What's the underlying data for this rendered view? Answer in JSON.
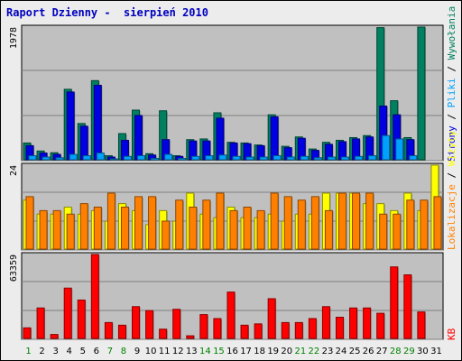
{
  "report_title": "Raport Dzienny -  sierpień 2010",
  "colors": {
    "background": "#ececec",
    "panel": "#c0c0c0",
    "title": "#0000c0",
    "visits": "#208060",
    "pages": "#0000e0",
    "files": "#00a0ff",
    "hits": "#008060",
    "sites": "#ff8000",
    "unique": "#ffff00",
    "kb": "#ff0000",
    "weekend": "#008000"
  },
  "legend_right": {
    "wywolania": "Wywołania",
    "pliki": "Pliki",
    "strony": "Strony",
    "wizyty": "Wizyty",
    "lokalizacje": "Lokalizacje",
    "kb": "KB",
    "sep": " / "
  },
  "chart_data": {
    "type": "bar",
    "categories": [
      "1",
      "2",
      "3",
      "4",
      "5",
      "6",
      "7",
      "8",
      "9",
      "10",
      "11",
      "12",
      "13",
      "14",
      "15",
      "16",
      "17",
      "18",
      "19",
      "20",
      "21",
      "22",
      "23",
      "24",
      "25",
      "26",
      "27",
      "28",
      "29",
      "30",
      "31"
    ],
    "weekend_days": [
      "1",
      "7",
      "8",
      "14",
      "15",
      "21",
      "22",
      "28",
      "29"
    ],
    "panels": [
      {
        "name": "traffic",
        "ymax_label": "1978",
        "ymax": 1978,
        "series": [
          {
            "name": "Wywołania",
            "values": [
              250,
              130,
              105,
              1050,
              540,
              1180,
              60,
              390,
              740,
              90,
              730,
              60,
              300,
              310,
              700,
              260,
              250,
              220,
              670,
              200,
              340,
              160,
              260,
              290,
              330,
              360,
              1970,
              880,
              330,
              1978,
              0
            ]
          },
          {
            "name": "Pliki",
            "values": [
              210,
              100,
              80,
              1010,
              500,
              1110,
              40,
              290,
              660,
              70,
              300,
              50,
              280,
              280,
              620,
              250,
              240,
              210,
              640,
              180,
              320,
              140,
              230,
              270,
              310,
              340,
              800,
              670,
              300,
              0,
              0
            ]
          },
          {
            "name": "Strony",
            "values": [
              60,
              40,
              30,
              80,
              60,
              100,
              10,
              50,
              60,
              20,
              80,
              20,
              50,
              60,
              70,
              50,
              40,
              40,
              60,
              40,
              50,
              30,
              40,
              40,
              50,
              60,
              360,
              310,
              60,
              0,
              0
            ]
          }
        ]
      },
      {
        "name": "visits",
        "ymax_label": "24",
        "ymax": 24,
        "series": [
          {
            "name": "Wizyty",
            "values": [
              14,
              10,
              10,
              12,
              10,
              11,
              8,
              13,
              11,
              7,
              11,
              8,
              16,
              10,
              9,
              12,
              9,
              9,
              10,
              8,
              10,
              10,
              16,
              16,
              16,
              13,
              13,
              11,
              16,
              11,
              24
            ]
          },
          {
            "name": "Lokalizacje",
            "values": [
              15,
              11,
              11,
              10,
              13,
              12,
              16,
              12,
              15,
              15,
              8,
              14,
              12,
              14,
              16,
              11,
              12,
              11,
              16,
              15,
              14,
              15,
              11,
              16,
              16,
              16,
              10,
              10,
              14,
              14,
              15
            ]
          }
        ]
      },
      {
        "name": "kb",
        "ymax_label": "63359",
        "ymax": 63359,
        "series": [
          {
            "name": "KB",
            "values": [
              8000,
              23000,
              3000,
              38000,
              29000,
              63359,
              12000,
              10000,
              24000,
              21000,
              7000,
              22000,
              2000,
              18000,
              15000,
              35000,
              10000,
              11000,
              30000,
              12000,
              12000,
              15000,
              24000,
              16000,
              23000,
              23000,
              19000,
              54000,
              48000,
              20000,
              0
            ]
          }
        ]
      }
    ]
  }
}
